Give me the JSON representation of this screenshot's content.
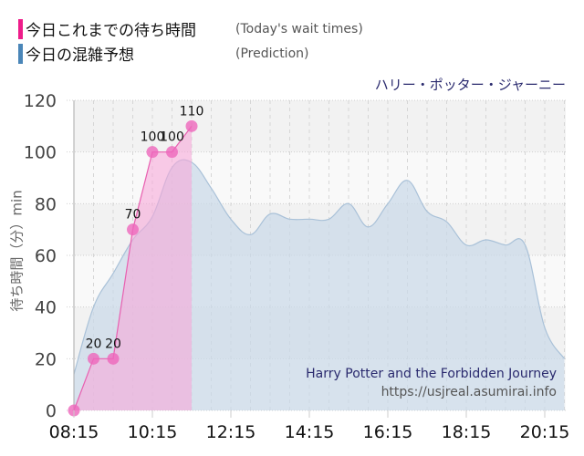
{
  "legend": {
    "items": [
      {
        "label": "今日これまでの待ち時間",
        "sub": "(Today's wait times)",
        "color": "#ee1c8a"
      },
      {
        "label": "今日の混雑予想",
        "sub": "(Prediction)",
        "color": "#4a86b8"
      }
    ]
  },
  "ride_title_ja": "ハリー・ポッター・ジャーニー",
  "ride_title_en": "Harry Potter and the Forbidden Journey",
  "site_url": "https://usjreal.asumirai.info",
  "colors": {
    "actual_line": "#e860b0",
    "actual_fill": "#f7a8d8",
    "actual_point": "#ee66bb",
    "prediction_fill": "#c9d9e8",
    "prediction_line": "#a9c1d8",
    "band_dark": "#f2f2f2",
    "band_light": "#f9f9f9"
  },
  "chart_data": {
    "type": "area",
    "title": "ハリー・ポッター・ジャーニー",
    "xlabel": "",
    "ylabel": "待ち時間（分）min",
    "ylim": [
      0,
      120
    ],
    "yticks": [
      0,
      20,
      40,
      60,
      80,
      100,
      120
    ],
    "xtick_labels": [
      "08:15",
      "10:15",
      "12:15",
      "14:15",
      "16:15",
      "18:15",
      "20:15"
    ],
    "x_range": [
      "08:15",
      "20:45"
    ],
    "grid": true,
    "legend_position": "top-left",
    "series": [
      {
        "name": "今日これまでの待ち時間 (Today's wait times)",
        "x": [
          "08:15",
          "08:45",
          "09:15",
          "09:45",
          "10:15",
          "10:45",
          "11:15"
        ],
        "values": [
          0,
          20,
          20,
          70,
          100,
          100,
          110
        ],
        "labels": [
          "",
          "20",
          "20",
          "70",
          "100",
          "100",
          "110"
        ]
      },
      {
        "name": "今日の混雑予想 (Prediction)",
        "x": [
          "08:15",
          "08:45",
          "09:15",
          "09:45",
          "10:15",
          "10:45",
          "11:15",
          "11:45",
          "12:15",
          "12:45",
          "13:15",
          "13:45",
          "14:15",
          "14:45",
          "15:15",
          "15:45",
          "16:15",
          "16:45",
          "17:15",
          "17:45",
          "18:15",
          "18:45",
          "19:15",
          "19:45",
          "20:15",
          "20:45"
        ],
        "values": [
          14,
          40,
          53,
          66,
          75,
          94,
          96,
          86,
          74,
          68,
          76,
          74,
          74,
          74,
          80,
          71,
          80,
          89,
          77,
          73,
          64,
          66,
          64,
          64,
          32,
          20
        ]
      }
    ]
  }
}
